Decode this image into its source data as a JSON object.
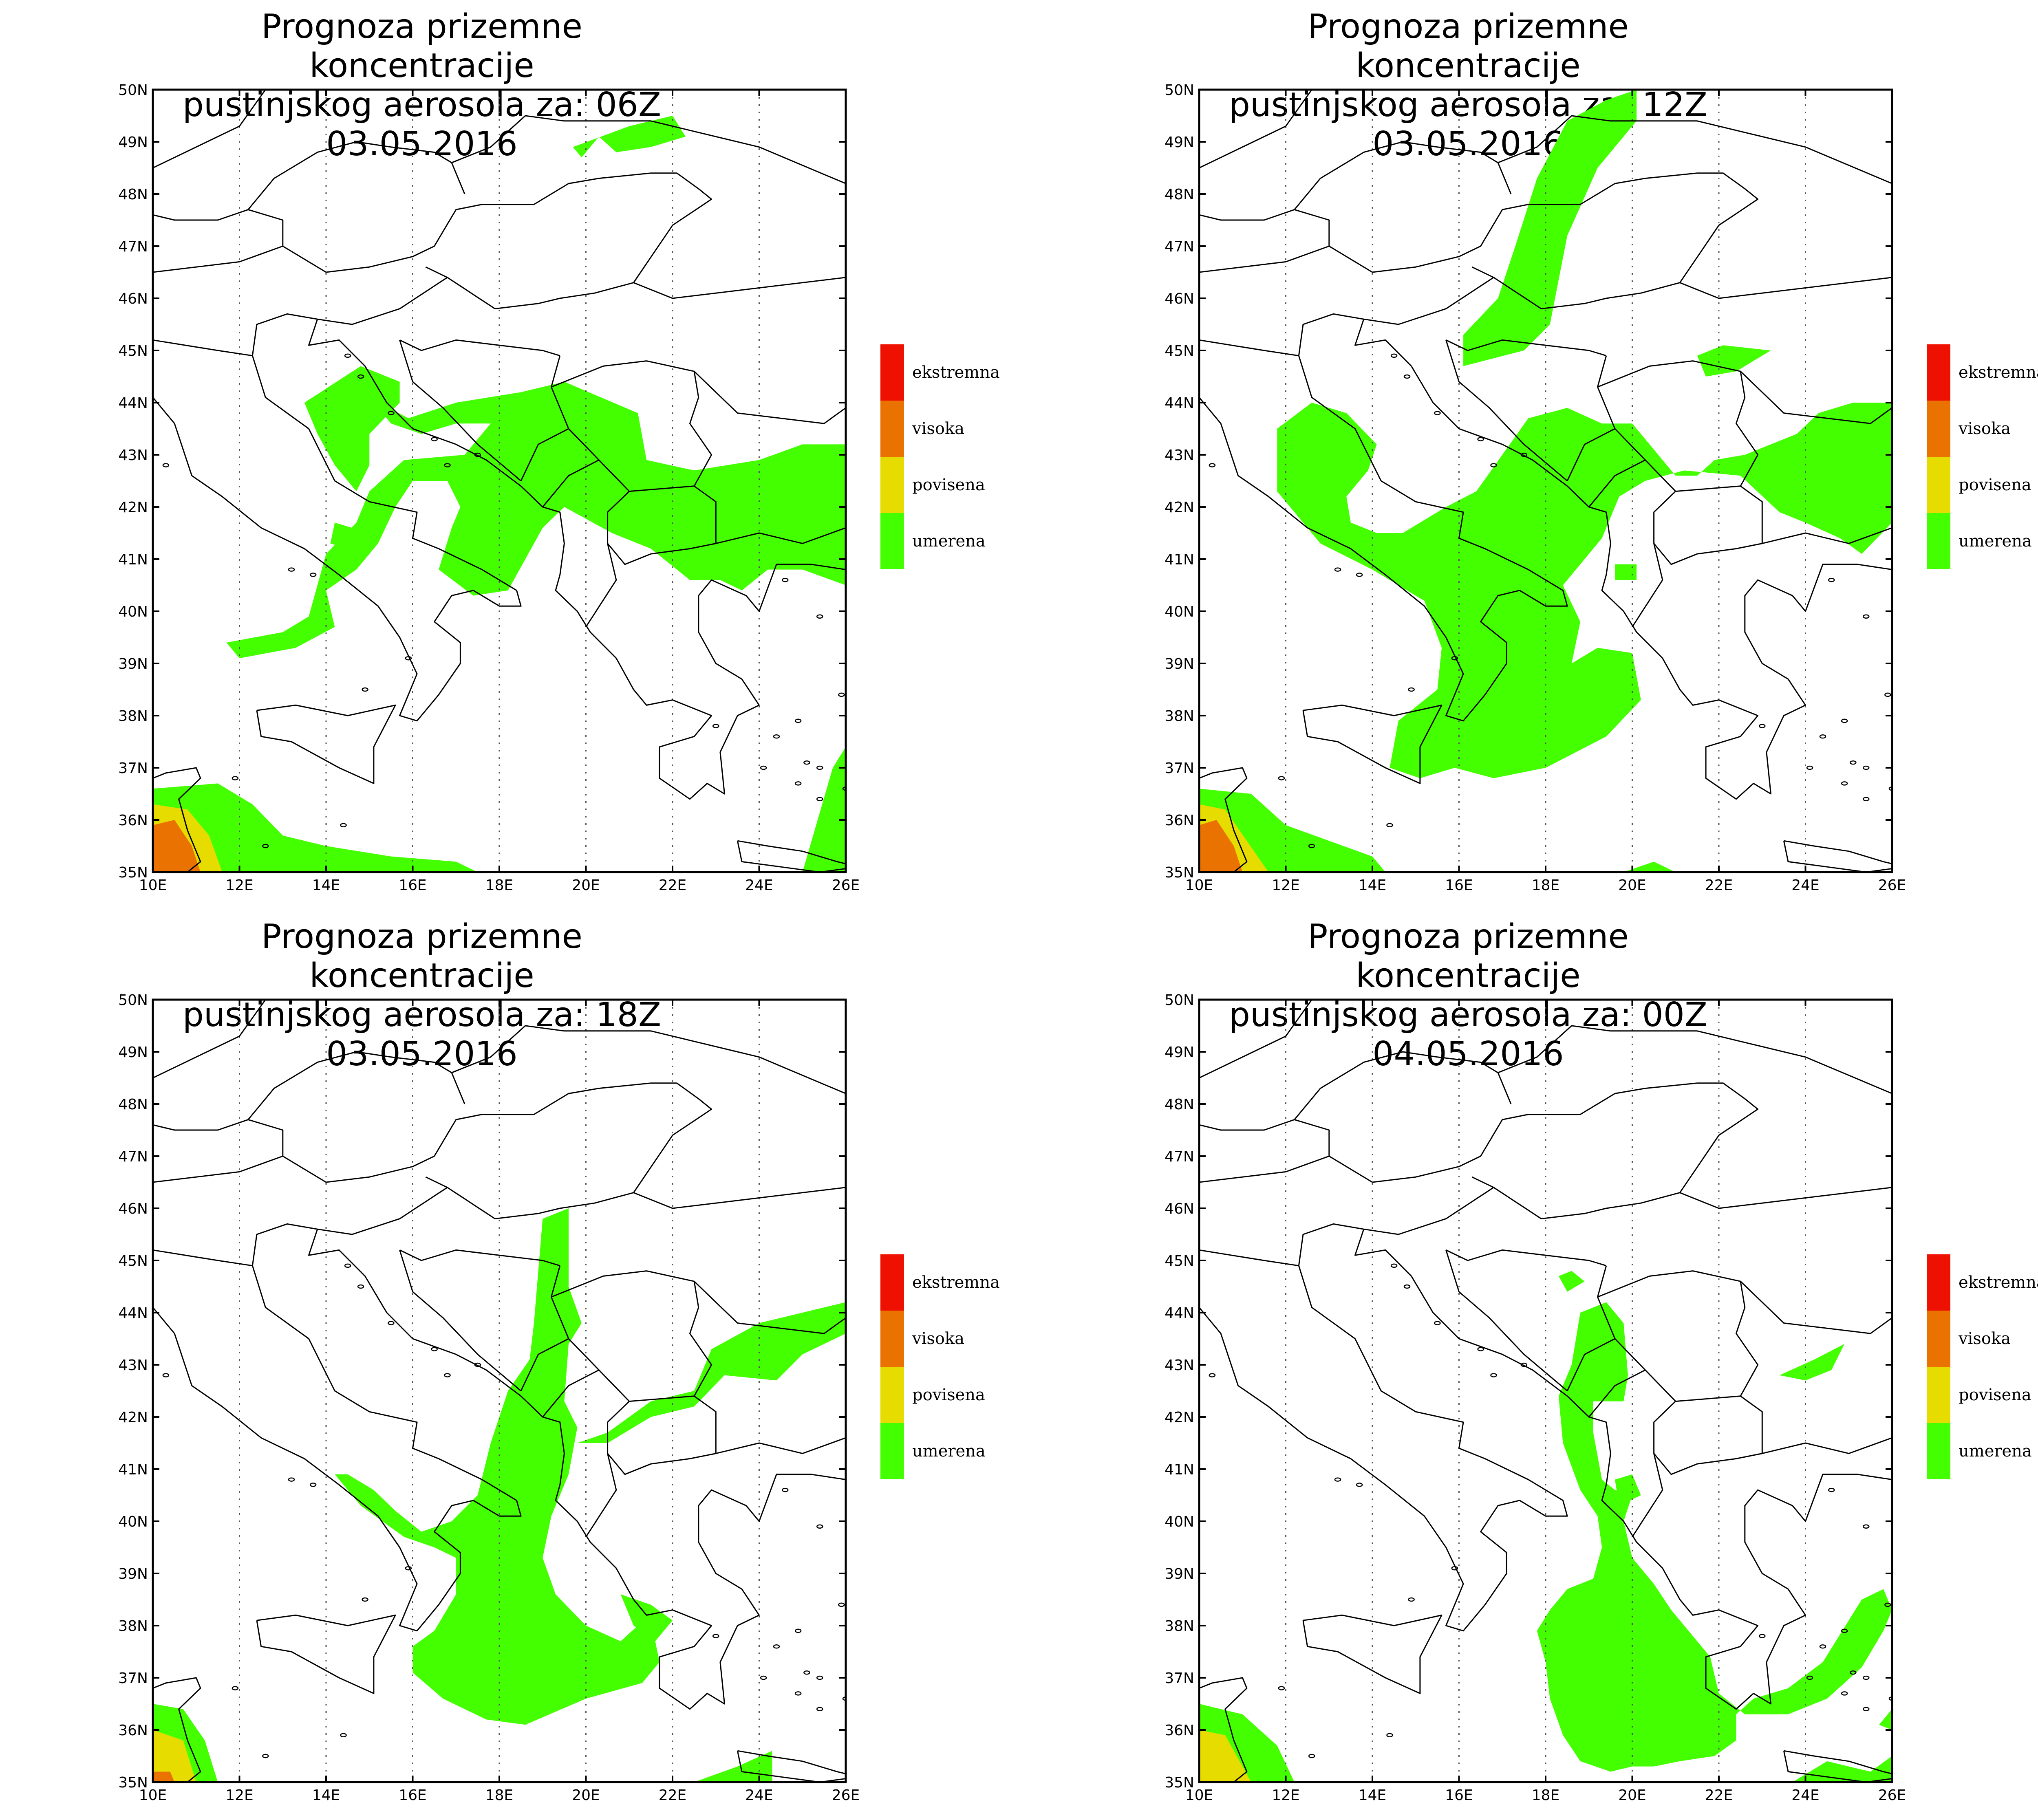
{
  "colors": {
    "ekstremna": "#ee1000",
    "visoka": "#ea7200",
    "povisena": "#e6dc00",
    "umerena": "#44ff00"
  },
  "legend": [
    "ekstremna",
    "visoka",
    "povisena",
    "umerena"
  ],
  "lat_ticks": [
    "50N",
    "49N",
    "48N",
    "47N",
    "46N",
    "45N",
    "44N",
    "43N",
    "42N",
    "41N",
    "40N",
    "39N",
    "38N",
    "37N",
    "36N",
    "35N"
  ],
  "lon_ticks": [
    "10E",
    "12E",
    "14E",
    "16E",
    "18E",
    "20E",
    "22E",
    "24E",
    "26E"
  ],
  "panels": [
    {
      "title_line1": "Prognoza prizemne koncentracije",
      "title_line2": "pustinjskog aerosola za: 06Z 03.05.2016"
    },
    {
      "title_line1": "Prognoza prizemne koncentracije",
      "title_line2": "pustinjskog aerosola za: 12Z 03.05.2016"
    },
    {
      "title_line1": "Prognoza prizemne koncentracije",
      "title_line2": "pustinjskog aerosola za: 18Z 03.05.2016"
    },
    {
      "title_line1": "Prognoza prizemne koncentracije",
      "title_line2": "pustinjskog aerosola za: 00Z 04.05.2016"
    }
  ]
}
